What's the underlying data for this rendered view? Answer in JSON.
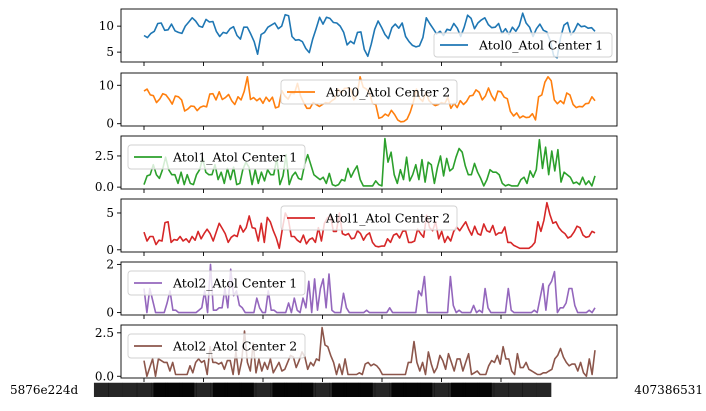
{
  "chart_data": {
    "type": "line",
    "layout": "6 stacked subplots sharing x-axis",
    "grid": false,
    "x_tick_labels_visible": {
      "first": "5876e224d",
      "last": "407386531",
      "note": "x tick labels are long overlapping hash strings; only first and last fragments are legible"
    },
    "x_tick_count": 7,
    "subplots": [
      {
        "series_name": "Atol0_Atol Center 1",
        "color": "#1f77b4",
        "legend_loc": "lower-right",
        "ylim": [
          3.1,
          13.3
        ],
        "yticks": [
          5,
          10
        ],
        "ytick_labels": [
          "5",
          "10"
        ],
        "values": [
          8.2,
          7.8,
          8.6,
          9.0,
          10.5,
          10.6,
          9.2,
          9.3,
          10.4,
          9.1,
          8.8,
          8.6,
          10.0,
          10.8,
          11.6,
          11.0,
          10.0,
          9.8,
          11.3,
          10.8,
          10.9,
          9.0,
          8.0,
          8.8,
          8.6,
          9.5,
          9.9,
          8.2,
          7.5,
          9.8,
          9.8,
          8.5,
          7.0,
          4.6,
          8.4,
          8.8,
          9.8,
          10.2,
          10.6,
          9.5,
          10.0,
          12.2,
          12.0,
          8.0,
          7.3,
          7.4,
          7.0,
          5.7,
          4.9,
          7.5,
          9.5,
          11.7,
          10.4,
          11.7,
          11.5,
          10.7,
          10.6,
          10.0,
          8.8,
          6.4,
          7.1,
          6.6,
          8.8,
          8.9,
          5.5,
          4.2,
          6.5,
          9.4,
          11.0,
          9.8,
          8.4,
          7.6,
          9.7,
          10.4,
          9.6,
          10.6,
          8.0,
          7.0,
          6.3,
          6.0,
          6.2,
          7.8,
          11.6,
          10.5,
          9.5,
          8.5,
          9.0,
          8.2,
          9.4,
          9.2,
          10.5,
          9.6,
          8.0,
          9.8,
          12.1,
          11.5,
          9.5,
          10.6,
          11.2,
          11.6,
          10.3,
          9.7,
          9.8,
          10.5,
          8.6,
          9.5,
          8.4,
          9.8,
          9.0,
          10.1,
          12.5,
          10.6,
          9.8,
          8.0,
          9.5,
          10.4,
          9.2,
          8.9,
          7.2,
          4.3,
          3.9,
          7.8,
          10.2,
          10.7,
          8.3,
          9.1,
          10.5,
          9.9,
          10.0,
          9.6,
          9.7,
          9.0
        ]
      },
      {
        "series_name": "Atol0_Atol Center 2",
        "color": "#ff7f0e",
        "legend_loc": "upper-center",
        "ylim": [
          -0.6,
          13.2
        ],
        "yticks": [
          0,
          10
        ],
        "ytick_labels": [
          "0",
          "10"
        ],
        "values": [
          8.5,
          9.0,
          7.5,
          7.3,
          5.5,
          6.4,
          7.8,
          7.5,
          6.4,
          5.1,
          7.2,
          7.0,
          6.2,
          3.3,
          3.8,
          4.6,
          4.5,
          3.4,
          4.3,
          4.6,
          4.4,
          7.7,
          7.8,
          6.2,
          8.3,
          6.3,
          6.8,
          7.6,
          6.0,
          5.0,
          7.0,
          6.2,
          8.4,
          12.2,
          6.3,
          6.8,
          6.0,
          6.6,
          5.3,
          6.9,
          5.8,
          6.9,
          4.1,
          4.4,
          8.6,
          7.2,
          6.4,
          8.0,
          7.8,
          10.5,
          7.2,
          5.5,
          4.0,
          4.0,
          5.5,
          5.0,
          4.5,
          5.0,
          5.5,
          5.3,
          6.0,
          6.5,
          9.0,
          8.0,
          9.2,
          9.3,
          9.0,
          6.2,
          7.5,
          12.2,
          9.5,
          9.0,
          8.0,
          5.2,
          5.0,
          1.4,
          1.7,
          2.5,
          2.0,
          3.5,
          2.4,
          1.0,
          0.5,
          0.6,
          1.2,
          3.0,
          5.6,
          9.0,
          6.6,
          5.8,
          8.2,
          6.0,
          5.2,
          4.7,
          5.0,
          5.5,
          5.2,
          6.8,
          4.0,
          5.3,
          4.2,
          6.0,
          5.0,
          5.8,
          7.2,
          7.4,
          8.8,
          8.2,
          6.2,
          7.2,
          9.3,
          7.3,
          6.0,
          8.5,
          8.3,
          6.9,
          6.5,
          3.2,
          2.0,
          2.8,
          1.5,
          2.0,
          1.6,
          1.7,
          2.6,
          1.0,
          7.0,
          7.5,
          10.8,
          12.2,
          11.2,
          6.2,
          5.2,
          6.0,
          5.2,
          8.0,
          7.5,
          5.0,
          4.2,
          4.5,
          4.4,
          5.2,
          5.3,
          7.0,
          6.0
        ]
      },
      {
        "series_name": "Atol1_Atol Center 1",
        "color": "#2ca02c",
        "legend_loc": "upper-left",
        "ylim": [
          -0.15,
          4.1
        ],
        "yticks": [
          0.0,
          2.5
        ],
        "ytick_labels": [
          "0.0",
          "2.5"
        ],
        "values": [
          0.2,
          0.9,
          1.0,
          1.8,
          1.0,
          0.7,
          1.4,
          2.4,
          1.4,
          1.0,
          1.0,
          0.3,
          1.2,
          0.2,
          1.0,
          0.3,
          0.2,
          1.0,
          1.4,
          2.3,
          1.2,
          1.0,
          1.0,
          1.8,
          0.6,
          1.2,
          0.3,
          1.5,
          0.6,
          1.6,
          0.2,
          0.3,
          1.4,
          2.0,
          1.6,
          0.2,
          1.4,
          0.3,
          1.2,
          0.5,
          1.4,
          1.0,
          1.0,
          2.3,
          0.2,
          0.9,
          2.6,
          0.2,
          0.9,
          1.2,
          0.7,
          0.6,
          1.8,
          2.6,
          1.8,
          1.0,
          0.8,
          0.6,
          0.8,
          0.3,
          1.1,
          0.2,
          0.1,
          0.2,
          0.6,
          0.5,
          1.5,
          0.8,
          1.3,
          1.7,
          0.6,
          0.1,
          0.1,
          0.1,
          0.1,
          0.5,
          0.2,
          0.1,
          3.9,
          2.0,
          2.8,
          1.0,
          0.3,
          1.4,
          0.6,
          2.4,
          0.5,
          1.0,
          1.8,
          0.6,
          2.2,
          0.4,
          2.0,
          1.8,
          0.3,
          1.6,
          2.5,
          0.9,
          2.3,
          1.3,
          1.5,
          2.4,
          3.1,
          2.8,
          1.7,
          1.0,
          1.0,
          1.9,
          1.2,
          0.7,
          0.1,
          0.6,
          1.4,
          1.2,
          1.2,
          1.0,
          0.3,
          0.1,
          0.2,
          0.1,
          0.1,
          0.1,
          0.6,
          0.8,
          0.3,
          1.3,
          0.8,
          1.4,
          3.8,
          1.5,
          3.2,
          1.0,
          2.9,
          1.3,
          3.0,
          0.4,
          1.2,
          1.0,
          0.8,
          0.3,
          0.4,
          0.2,
          0.8,
          0.2,
          0.5,
          0.1,
          0.9
        ]
      },
      {
        "series_name": "Atol1_Atol Center 2",
        "color": "#d62728",
        "legend_loc": "upper-center",
        "ylim": [
          -0.3,
          6.9
        ],
        "yticks": [
          0,
          5
        ],
        "ytick_labels": [
          "0",
          "5"
        ],
        "values": [
          2.4,
          1.2,
          1.8,
          1.8,
          0.7,
          1.3,
          1.2,
          3.7,
          3.8,
          1.0,
          1.4,
          1.3,
          1.8,
          1.2,
          1.5,
          1.0,
          1.8,
          1.3,
          2.5,
          1.5,
          2.2,
          2.8,
          2.2,
          1.2,
          2.4,
          3.6,
          2.9,
          2.2,
          1.0,
          1.7,
          2.0,
          1.8,
          3.3,
          2.4,
          3.0,
          4.6,
          3.0,
          2.9,
          1.2,
          3.6,
          1.0,
          4.4,
          3.8,
          2.6,
          1.6,
          0.2,
          2.8,
          5.0,
          4.2,
          1.8,
          1.8,
          1.3,
          1.0,
          2.0,
          0.8,
          1.4,
          1.6,
          1.0,
          3.0,
          1.2,
          3.6,
          4.3,
          4.7,
          2.5,
          2.5,
          5.0,
          2.2,
          2.0,
          2.2,
          1.5,
          1.6,
          2.6,
          2.2,
          1.3,
          2.0,
          2.3,
          1.0,
          0.5,
          0.4,
          0.5,
          0.5,
          1.5,
          1.0,
          2.0,
          2.2,
          1.6,
          2.5,
          2.6,
          1.0,
          1.0,
          1.2,
          2.8,
          2.2,
          1.7,
          4.7,
          3.0,
          2.6,
          3.8,
          1.5,
          2.5,
          1.0,
          1.8,
          1.2,
          2.5,
          3.1,
          2.6,
          3.2,
          3.8,
          2.8,
          2.0,
          3.2,
          2.2,
          2.0,
          3.5,
          2.6,
          2.4,
          3.3,
          2.0,
          2.3,
          2.3,
          3.1,
          1.0,
          1.0,
          0.6,
          0.4,
          0.2,
          0.2,
          0.2,
          0.2,
          0.5,
          1.0,
          3.8,
          2.5,
          4.0,
          6.4,
          4.8,
          3.6,
          3.8,
          3.0,
          2.5,
          2.2,
          1.6,
          1.8,
          2.4,
          3.2,
          3.0,
          2.0,
          1.7,
          1.8,
          2.5,
          2.3
        ]
      },
      {
        "series_name": "Atol2_Atol Center 1",
        "color": "#9467bd",
        "legend_loc": "upper-left",
        "ylim": [
          -0.1,
          2.1
        ],
        "yticks": [
          0,
          2
        ],
        "ytick_labels": [
          "0",
          "2"
        ],
        "values": [
          1.0,
          0.0,
          1.0,
          0.5,
          0.0,
          0.0,
          0.0,
          0.0,
          0.4,
          0.9,
          0.1,
          0.1,
          0.0,
          0.0,
          0.0,
          0.0,
          0.0,
          0.0,
          0.0,
          0.1,
          0.2,
          0.9,
          0.0,
          2.0,
          0.1,
          0.1,
          0.2,
          0.2,
          1.0,
          0.2,
          1.8,
          0.7,
          0.9,
          0.3,
          0.2,
          0.0,
          0.0,
          0.0,
          0.0,
          0.6,
          0.2,
          0.0,
          0.0,
          0.9,
          0.1,
          0.1,
          0.0,
          0.0,
          0.0,
          0.0,
          0.4,
          0.0,
          0.6,
          0.1,
          0.0,
          0.6,
          0.2,
          1.3,
          0.0,
          1.4,
          0.1,
          1.0,
          1.4,
          0.2,
          1.6,
          0.1,
          0.0,
          0.0,
          0.0,
          0.8,
          0.2,
          0.0,
          0.0,
          0.0,
          0.0,
          0.0,
          0.0,
          0.1,
          0.0,
          0.0,
          0.0,
          0.0,
          0.0,
          0.0,
          0.0,
          0.2,
          0.0,
          0.0,
          0.0,
          0.0,
          0.0,
          0.0,
          0.0,
          0.0,
          0.0,
          0.9,
          0.7,
          1.5,
          0.0,
          0.0,
          0.0,
          0.0,
          0.0,
          0.0,
          0.0,
          0.0,
          1.5,
          0.3,
          0.0,
          0.1,
          0.0,
          0.0,
          0.0,
          0.0,
          0.3,
          0.0,
          0.1,
          0.0,
          1.0,
          0.2,
          0.0,
          0.0,
          0.0,
          0.0,
          0.0,
          0.0,
          1.0,
          0.1,
          0.0,
          0.0,
          0.0,
          0.0,
          0.0,
          0.0,
          0.0,
          0.1,
          0.0,
          0.6,
          1.2,
          0.1,
          1.1,
          1.3,
          1.7,
          0.0,
          0.2,
          0.2,
          0.4,
          1.0,
          1.0,
          0.3,
          0.0,
          0.0,
          0.0,
          0.0,
          0.1,
          0.0,
          0.2
        ]
      },
      {
        "series_name": "Atol2_Atol Center 2",
        "color": "#8c564b",
        "legend_loc": "upper-left",
        "ylim": [
          -0.1,
          2.95
        ],
        "yticks": [
          0.0,
          2.5
        ],
        "ytick_labels": [
          "0.0",
          "2.5"
        ],
        "values": [
          0.9,
          0.0,
          0.5,
          1.0,
          0.0,
          1.0,
          0.9,
          0.8,
          0.8,
          0.3,
          0.8,
          0.1,
          0.1,
          0.1,
          0.1,
          0.1,
          0.6,
          0.2,
          0.8,
          1.0,
          0.8,
          0.9,
          0.1,
          1.7,
          0.8,
          0.8,
          0.7,
          0.8,
          0.4,
          0.9,
          0.9,
          0.1,
          1.4,
          0.1,
          0.9,
          2.6,
          0.8,
          0.3,
          1.9,
          0.2,
          1.0,
          0.3,
          0.8,
          0.4,
          1.0,
          0.2,
          0.5,
          0.8,
          0.3,
          0.4,
          0.8,
          1.2,
          1.1,
          0.5,
          0.9,
          1.4,
          1.1,
          0.4,
          0.8,
          0.6,
          1.0,
          0.9,
          2.8,
          1.8,
          1.7,
          1.2,
          0.8,
          0.1,
          0.7,
          0.1,
          1.0,
          0.1,
          0.1,
          0.1,
          0.1,
          0.2,
          0.1,
          0.7,
          0.8,
          0.6,
          0.7,
          0.6,
          0.4,
          0.1,
          0.1,
          0.1,
          0.1,
          0.1,
          0.1,
          0.1,
          0.1,
          0.1,
          0.8,
          0.8,
          2.0,
          0.8,
          0.3,
          0.8,
          0.1,
          1.4,
          0.7,
          0.2,
          0.5,
          1.2,
          0.9,
          0.4,
          1.3,
          0.8,
          0.3,
          1.0,
          1.0,
          0.3,
          0.8,
          1.3,
          0.1,
          0.2,
          0.3,
          0.1,
          0.1,
          0.1,
          0.6,
          0.9,
          0.8,
          1.2,
          0.7,
          1.7,
          1.0,
          1.0,
          0.3,
          0.1,
          1.3,
          0.5,
          0.5,
          0.8,
          0.4,
          0.3,
          0.2,
          0.1,
          0.1,
          0.2,
          0.2,
          0.3,
          0.4,
          1.0,
          1.2,
          1.6,
          1.1,
          0.8,
          0.6,
          0.7,
          0.7,
          0.3,
          0.8,
          0.2,
          0.0,
          1.0,
          0.1,
          1.5
        ]
      }
    ]
  }
}
